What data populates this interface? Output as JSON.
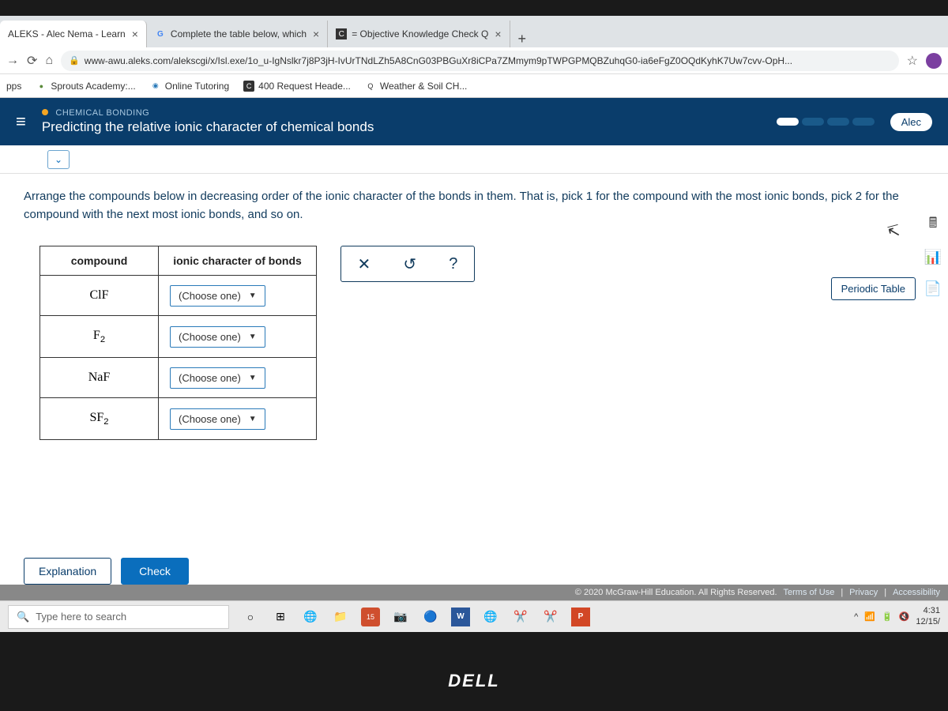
{
  "browser": {
    "tabs": [
      {
        "title": "ALEKS - Alec Nema - Learn",
        "favicon": ""
      },
      {
        "title": "Complete the table below, which",
        "favicon": "G"
      },
      {
        "title": "= Objective Knowledge Check Q",
        "favicon": "C"
      }
    ],
    "url": "www-awu.aleks.com/alekscgi/x/Isl.exe/1o_u-IgNslkr7j8P3jH-IvUrTNdLZh5A8CnG03PBGuXr8iCPa7ZMmym9pTWPGPMQBZuhqG0-ia6eFgZ0OQdKyhK7Uw7cvv-OpH...",
    "bookmarks": {
      "apps_label": "pps",
      "items": [
        {
          "label": "Sprouts Academy:...",
          "icon": "●",
          "color": "#5a8a3a"
        },
        {
          "label": "Online Tutoring",
          "icon": "◉",
          "color": "#2a7ab9"
        },
        {
          "label": "400 Request Heade...",
          "icon": "C",
          "color": "#333"
        },
        {
          "label": "Weather & Soil CH...",
          "icon": "Q",
          "color": "#333"
        }
      ]
    }
  },
  "aleks": {
    "crumb": "CHEMICAL BONDING",
    "title": "Predicting the relative ionic character of chemical bonds",
    "user": "Alec",
    "question": "Arrange the compounds below in decreasing order of the ionic character of the bonds in them. That is, pick 1 for the compound with the most ionic bonds, pick 2 for the compound with the next most ionic bonds, and so on.",
    "table": {
      "col1": "compound",
      "col2": "ionic character of bonds",
      "rows": [
        {
          "compound_html": "ClF",
          "placeholder": "(Choose one)"
        },
        {
          "compound_html": "F₂",
          "placeholder": "(Choose one)"
        },
        {
          "compound_html": "NaF",
          "placeholder": "(Choose one)"
        },
        {
          "compound_html": "SF₂",
          "placeholder": "(Choose one)"
        }
      ]
    },
    "toolbox": {
      "clear": "✕",
      "undo": "↺",
      "help": "?"
    },
    "periodic_label": "Periodic Table",
    "explanation_label": "Explanation",
    "check_label": "Check",
    "copyright": "© 2020 McGraw-Hill Education. All Rights Reserved.",
    "footer_links": {
      "terms": "Terms of Use",
      "privacy": "Privacy",
      "accessibility": "Accessibility"
    }
  },
  "taskbar": {
    "search_placeholder": "Type here to search",
    "time": "4:31 ",
    "date": "12/15/"
  },
  "brand": "DELL"
}
